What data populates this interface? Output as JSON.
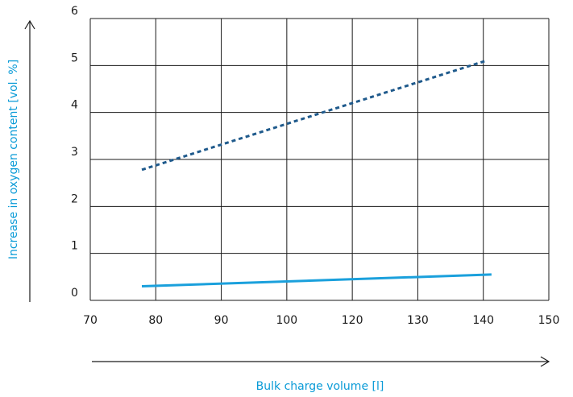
{
  "chart_data": {
    "type": "line",
    "xlabel": "Bulk charge volume [l]",
    "ylabel": "Increase in oxygen content [vol. %]",
    "xlim": [
      70,
      150
    ],
    "ylim": [
      0,
      6
    ],
    "x_ticks": [
      "70",
      "80",
      "90",
      "100",
      "120",
      "130",
      "140",
      "150"
    ],
    "y_ticks": [
      "0",
      "1",
      "2",
      "3",
      "4",
      "5",
      "6"
    ],
    "grid": true,
    "series": [
      {
        "style": "dashed",
        "color": "#1f5a8c",
        "x": [
          79,
          139
        ],
        "y": [
          2.78,
          5.1
        ]
      },
      {
        "style": "solid",
        "color": "#1aa0dc",
        "x": [
          79,
          140
        ],
        "y": [
          0.3,
          0.55
        ]
      }
    ]
  }
}
